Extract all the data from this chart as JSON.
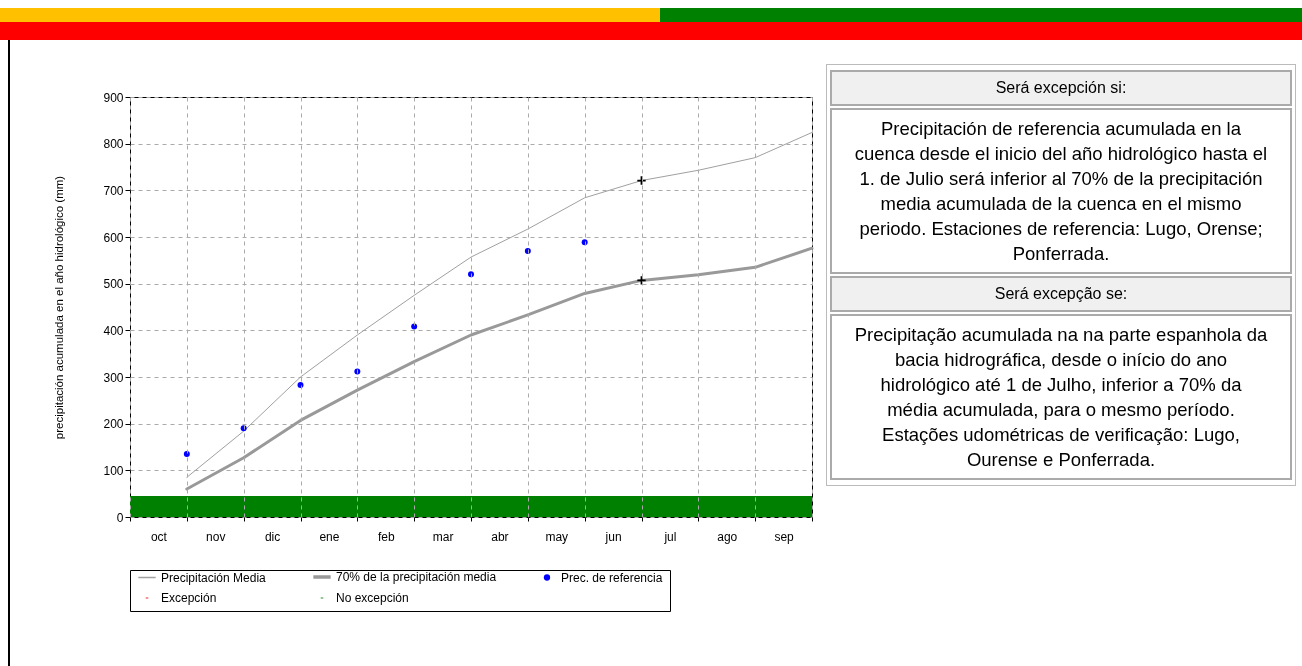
{
  "chart_data": [
    {
      "type": "line",
      "ylabel": "precipitación acumulada en el año hidrológico (mm)",
      "categories": [
        null,
        "oct",
        null,
        "nov",
        null,
        "dic",
        null,
        "ene",
        null,
        "feb",
        null,
        "mar",
        null,
        "abr",
        null,
        "may",
        null,
        "jun",
        null,
        "jul",
        null,
        "ago",
        null,
        "sep",
        null
      ],
      "ylim": [
        0,
        900
      ],
      "yticks": [
        0,
        100,
        200,
        300,
        400,
        500,
        600,
        700,
        800,
        900
      ],
      "grid": true,
      "legend": "bottom",
      "series": [
        {
          "name": "Precipitación Media",
          "type": "line",
          "color": "#a0a0a0",
          "values": [
            null,
            null,
            85,
            null,
            184,
            null,
            300,
            null,
            390,
            null,
            475,
            null,
            557,
            null,
            617,
            null,
            684,
            null,
            721,
            null,
            743,
            null,
            770,
            null,
            824
          ]
        },
        {
          "name": "70% de la precipitación media",
          "type": "line",
          "color": "#999999",
          "values": [
            null,
            null,
            60,
            null,
            127,
            null,
            207,
            null,
            272,
            null,
            333,
            null,
            390,
            null,
            433,
            null,
            479,
            null,
            507,
            null,
            519,
            null,
            535,
            null,
            576
          ]
        },
        {
          "name": "Prec. de referencia",
          "type": "scatter",
          "marker": "circle",
          "color": "#0000ff",
          "values": [
            null,
            null,
            135,
            null,
            190,
            null,
            283,
            null,
            312,
            null,
            408,
            null,
            520,
            null,
            570,
            null,
            589,
            null,
            null,
            null,
            null,
            null,
            null,
            null,
            null
          ]
        },
        {
          "name": "Excepción",
          "type": "bar",
          "color": "#ff0000",
          "values": [
            null,
            null,
            null,
            null,
            null,
            null,
            null,
            null,
            null,
            null,
            null,
            null,
            null,
            null,
            null,
            null,
            null,
            null,
            null,
            null,
            null,
            null,
            null,
            null,
            null
          ]
        },
        {
          "type": "scatter",
          "marker": "cross",
          "color": "#000000",
          "values": [
            null,
            null,
            null,
            null,
            null,
            null,
            null,
            null,
            null,
            null,
            null,
            null,
            null,
            null,
            null,
            null,
            null,
            null,
            721,
            null,
            null,
            null,
            null,
            null,
            null
          ]
        },
        {
          "type": "scatter",
          "marker": "cross",
          "color": "#000000",
          "values": [
            null,
            null,
            null,
            null,
            null,
            null,
            null,
            null,
            null,
            null,
            null,
            null,
            null,
            null,
            null,
            null,
            null,
            null,
            507,
            null,
            null,
            null,
            null,
            null,
            null
          ]
        }
      ],
      "bands": [
        {
          "axis": "y",
          "from": 0,
          "to": 45,
          "label": "No excepción",
          "color": "#008000"
        }
      ]
    },
    {
      "type": "other",
      "annotations": [
        "Será excepción si:",
        "Precipitación de referencia acumulada en la cuenca desde el inicio del año hidrológico hasta el 1. de Julio será inferior al 70% de la precipitación media acumulada de la cuenca en el mismo periodo. Estaciones de referencia: Lugo, Orense; Ponferrada.",
        "Será excepção se:",
        "Precipitação acumulada na na parte espanhola da bacia hidrográfica, desde o início do ano hidrológico até 1 de Julho, inferior a 70% da média acumulada, para o mesmo período. Estações udométricas de verificação: Lugo, Ourense e Ponferrada."
      ]
    }
  ]
}
